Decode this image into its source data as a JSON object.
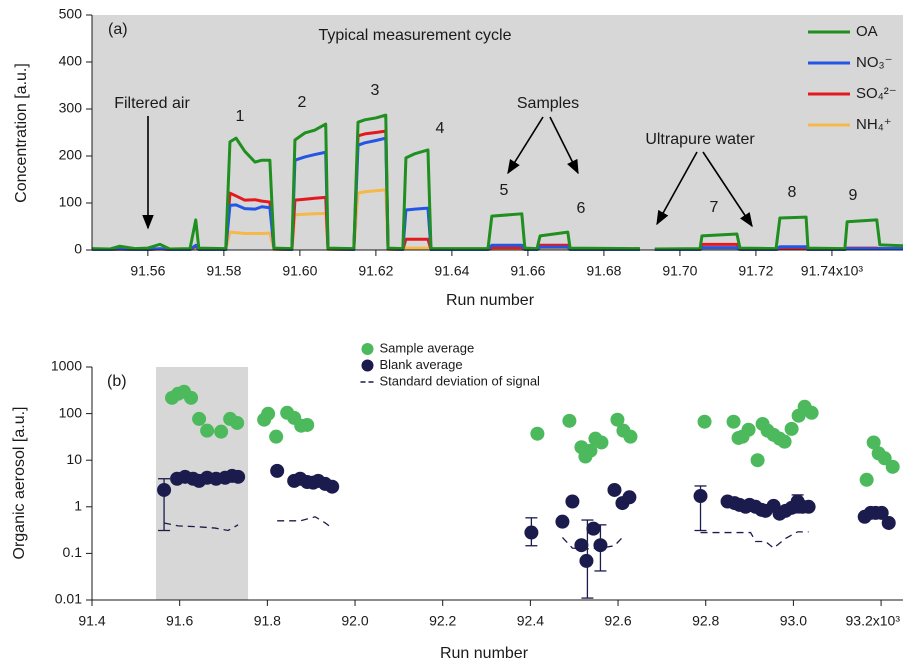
{
  "chart_data": [
    {
      "type": "line",
      "x_label": "Run number",
      "y_label": "Concentration [a.u.]",
      "annotations": [
        "(a)",
        "Typical measurement cycle",
        "Filtered air",
        "1",
        "2",
        "3",
        "4",
        "5",
        "6",
        "7",
        "8",
        "9",
        "Samples",
        "Ultrapure water"
      ],
      "x": [
        91.5453,
        91.55,
        91.5526,
        91.5566,
        91.56,
        91.5632,
        91.5658,
        91.5711,
        91.5726,
        91.5734,
        91.5805,
        91.5816,
        91.5832,
        91.5855,
        91.5882,
        91.59,
        91.5921,
        91.5932,
        91.5979,
        91.5987,
        91.6013,
        91.6039,
        91.6068,
        91.6074,
        91.6142,
        91.6153,
        91.6171,
        91.62,
        91.6226,
        91.6232,
        91.6271,
        91.6279,
        91.6303,
        91.6337,
        91.6345,
        91.6495,
        91.6505,
        91.6584,
        91.6592,
        91.6624,
        91.6632,
        91.6705,
        91.6711,
        91.6895,
        null,
        91.6934,
        91.7053,
        91.7058,
        91.715,
        91.7158,
        91.7253,
        91.7263,
        91.7332,
        91.7337,
        91.7434,
        91.744,
        91.7518,
        91.7526,
        91.7587
      ],
      "series": [
        {
          "name": "OA",
          "color": "#1f8f1f",
          "values": [
            3,
            2,
            8,
            3,
            4,
            12,
            2,
            3,
            64,
            4,
            3,
            230,
            238,
            210,
            187,
            191,
            191,
            4,
            3,
            234,
            249,
            255,
            268,
            4,
            3,
            272,
            277,
            281,
            287,
            4,
            3,
            196,
            205,
            213,
            3,
            3,
            72,
            77,
            4,
            3,
            30,
            38,
            4,
            3,
            null,
            2,
            3,
            30,
            34,
            4,
            3,
            68,
            70,
            4,
            3,
            60,
            64,
            11,
            9
          ]
        },
        {
          "name": "NO₃⁻",
          "color": "#2456e6",
          "values": [
            1,
            1,
            2,
            1,
            1,
            3,
            1,
            1,
            10,
            1,
            1,
            95,
            96,
            88,
            87,
            92,
            90,
            2,
            1,
            191,
            198,
            203,
            208,
            2,
            1,
            223,
            228,
            233,
            238,
            2,
            1,
            85,
            87,
            89,
            1,
            1,
            10,
            10,
            1,
            1,
            6,
            6,
            1,
            1,
            null,
            1,
            1,
            5,
            5,
            1,
            1,
            7,
            7,
            1,
            1,
            3,
            3,
            3,
            3
          ]
        },
        {
          "name": "SO₄²⁻",
          "color": "#e3191f",
          "values": [
            1,
            1,
            2,
            1,
            1,
            2,
            1,
            1,
            8,
            1,
            1,
            121,
            115,
            106,
            107,
            104,
            102,
            2,
            1,
            106,
            108,
            110,
            112,
            2,
            1,
            243,
            247,
            250,
            253,
            2,
            1,
            23,
            23,
            23,
            1,
            1,
            5,
            5,
            1,
            1,
            10,
            10,
            1,
            1,
            null,
            1,
            1,
            12,
            12,
            1,
            1,
            3,
            3,
            1,
            1,
            4,
            4,
            3,
            3
          ]
        },
        {
          "name": "NH₄⁺",
          "color": "#f7b84a",
          "values": [
            1,
            1,
            1,
            1,
            1,
            2,
            1,
            1,
            4,
            1,
            1,
            38,
            37,
            35,
            35,
            35,
            36,
            1,
            1,
            75,
            76,
            77,
            78,
            1,
            1,
            121,
            124,
            126,
            128,
            1,
            1,
            4,
            4,
            4,
            1,
            1,
            2,
            2,
            1,
            1,
            2,
            2,
            1,
            1,
            null,
            1,
            1,
            2,
            2,
            1,
            1,
            2,
            2,
            1,
            1,
            2,
            2,
            2,
            2
          ]
        }
      ],
      "xlim": [
        91.5453,
        91.7587
      ],
      "xticks": [
        91.56,
        91.58,
        {
          "value": 91.6,
          "label": "91.60"
        },
        91.62,
        91.64,
        91.66,
        91.68,
        {
          "value": 91.7,
          "label": "91.70"
        },
        91.72,
        {
          "value": 91.74,
          "label": "91.74x10³"
        }
      ],
      "ylim": [
        0,
        500
      ],
      "yticks": [
        0,
        100,
        200,
        300,
        400,
        500
      ],
      "background": "#d7d7d7",
      "legend": "upper right"
    },
    {
      "type": "scatter",
      "x_label": "Run number",
      "y_label": "Organic aerosol [a.u.]",
      "annotations": [
        "(b)"
      ],
      "series": [
        {
          "name": "Sample average",
          "color": "#4cba5c",
          "style": "marker",
          "x": [
            91.5826,
            91.5963,
            91.61,
            91.626,
            91.6443,
            91.6626,
            91.6945,
            91.7151,
            91.7311,
            91.7927,
            91.8018,
            91.8201,
            91.8452,
            91.8612,
            91.8772,
            91.8909,
            92.416,
            92.489,
            92.5164,
            92.5256,
            92.537,
            92.5484,
            92.5621,
            92.5986,
            92.6123,
            92.6283,
            92.7973,
            92.8635,
            92.8749,
            92.884,
            92.8977,
            92.9183,
            92.9297,
            92.9411,
            92.9548,
            92.9685,
            92.9799,
            92.9959,
            93.0119,
            93.0256,
            93.0416,
            93.1671,
            93.1831,
            93.1945,
            93.2082,
            93.2265
          ],
          "values": [
            218,
            266,
            294,
            218,
            77,
            43,
            41,
            77,
            63,
            74,
            99,
            32,
            104,
            81,
            55,
            57,
            37,
            70,
            19,
            12,
            16,
            29,
            24,
            74,
            43,
            32,
            67,
            67,
            30,
            32,
            45,
            10,
            60,
            43,
            35,
            29,
            25,
            47,
            90,
            140,
            104,
            3.8,
            24,
            14,
            11,
            7.2
          ]
        },
        {
          "name": "Blank average",
          "color": "#1b1b4d",
          "style": "marker",
          "x": [
            91.5644,
            91.5941,
            91.6123,
            91.6306,
            91.6443,
            91.6626,
            91.6831,
            91.7037,
            91.7196,
            91.7333,
            91.8224,
            91.8612,
            91.8749,
            91.8909,
            91.9046,
            91.916,
            91.932,
            91.9479,
            92.4023,
            92.4731,
            92.4959,
            92.5164,
            92.5279,
            92.5438,
            92.5598,
            92.5918,
            92.61,
            92.626,
            92.7881,
            92.8498,
            92.8658,
            92.8772,
            92.8909,
            92.9,
            92.9137,
            92.9274,
            92.9365,
            92.9548,
            92.9685,
            92.9822,
            92.9959,
            93.0096,
            93.021,
            93.0347,
            93.1626,
            93.1763,
            93.1877,
            93.2014,
            93.2174
          ],
          "values": [
            2.3,
            4,
            4.4,
            4,
            3.6,
            4.2,
            4,
            4.2,
            4.6,
            4.4,
            5.9,
            3.6,
            4,
            3.4,
            3.3,
            3.6,
            3.1,
            2.7,
            0.28,
            0.48,
            1.3,
            0.15,
            0.069,
            0.34,
            0.15,
            2.3,
            1.2,
            1.6,
            1.7,
            1.3,
            1.2,
            1.1,
            1,
            1.1,
            1,
            0.86,
            0.82,
            1.05,
            0.71,
            0.82,
            0.95,
            1.3,
            1,
            1,
            0.61,
            0.74,
            0.74,
            0.74,
            0.45
          ]
        },
        {
          "name": "Standard deviation of signal",
          "color": "#1b1b4d",
          "style": "dashed-line",
          "x": [
            91.5644,
            91.5963,
            91.6466,
            91.6808,
            91.7105,
            91.7333,
            null,
            91.8224,
            91.8749,
            91.9091,
            91.932,
            91.9479,
            null,
            92.4731,
            92.4959,
            92.5279,
            92.5598,
            92.5918,
            92.61,
            null,
            92.7881,
            92.8498,
            92.9023,
            92.9137,
            92.9365,
            92.9548,
            92.9822,
            93.0096,
            93.0347
          ],
          "values": [
            0.45,
            0.39,
            0.37,
            0.35,
            0.31,
            0.41,
            null,
            0.5,
            0.5,
            0.61,
            0.45,
            0.35,
            null,
            0.22,
            0.13,
            0.125,
            0.13,
            0.146,
            0.22,
            null,
            0.28,
            0.28,
            0.28,
            0.18,
            0.18,
            0.13,
            0.21,
            0.29,
            0.29
          ]
        }
      ],
      "error_bars": [
        {
          "x": 91.5644,
          "low": 0.31,
          "high": 4
        },
        {
          "x": 92.4023,
          "low": 0.146,
          "high": 0.58
        },
        {
          "x": 92.5301,
          "low": 0.011,
          "high": 0.52
        },
        {
          "x": 92.5598,
          "low": 0.042,
          "high": 0.41
        },
        {
          "x": 92.7881,
          "low": 0.31,
          "high": 2.8
        },
        {
          "x": 93.0096,
          "low": 0.74,
          "high": 1.8
        }
      ],
      "error_color": "#1b1b4d",
      "highlight": [
        91.546,
        91.756
      ],
      "highlight_color": "#d7d7d7",
      "xlim": [
        91.4,
        93.25
      ],
      "xticks": [
        91.4,
        91.6,
        91.8,
        {
          "value": 92,
          "label": "92.0"
        },
        92.2,
        92.4,
        92.6,
        92.8,
        {
          "value": 93,
          "label": "93.0"
        },
        {
          "value": 93.2,
          "label": "93.2x10³"
        }
      ],
      "ylim": [
        0.01,
        1000
      ],
      "yticks": [
        0.01,
        0.1,
        1,
        10,
        100,
        1000
      ],
      "log_y": true,
      "legend": "upper center",
      "legend_text_in_series_color": true
    }
  ]
}
